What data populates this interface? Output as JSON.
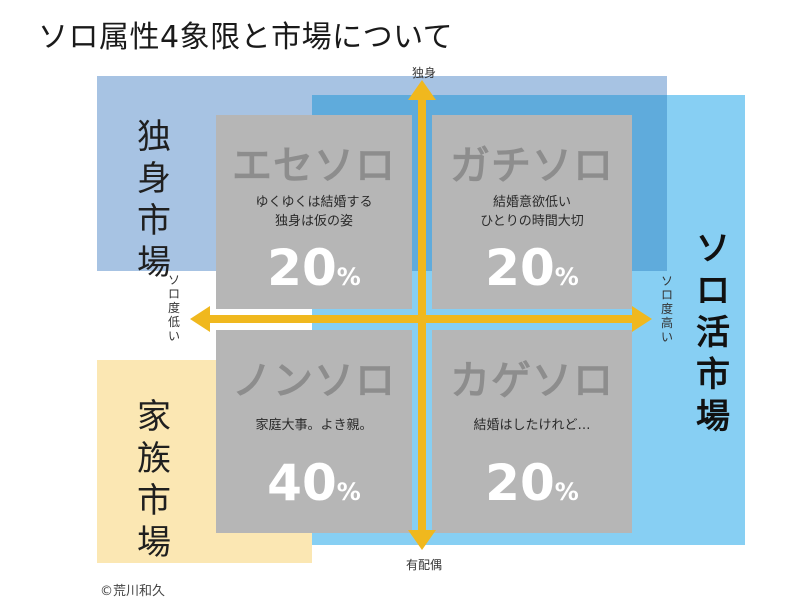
{
  "title": "ソロ属性4象限と市場について",
  "markets": {
    "single": "独身市場",
    "family": "家族市場",
    "solo": "ソロ活市場"
  },
  "axes": {
    "top": "独身",
    "bottom": "有配偶",
    "left": "ソロ度低い",
    "right": "ソロ度高い"
  },
  "quadrants": {
    "top_left": {
      "name": "エセソロ",
      "description": "ゆくゆくは結婚する\n独身は仮の姿",
      "percent": "20",
      "unit": "%"
    },
    "top_right": {
      "name": "ガチソロ",
      "description": "結婚意欲低い\nひとりの時間大切",
      "percent": "20",
      "unit": "%"
    },
    "bottom_left": {
      "name": "ノンソロ",
      "description": "家庭大事。よき親。",
      "percent": "40",
      "unit": "%"
    },
    "bottom_right": {
      "name": "カゲソロ",
      "description": "結婚はしたけれど…",
      "percent": "20",
      "unit": "%"
    }
  },
  "copyright": "©荒川和久",
  "colors": {
    "single_market": "#a7c3e3",
    "family_market": "#fbe7b3",
    "solo_market": "#87cff3",
    "quadrant_box": "#b6b6b6",
    "axis_arrow": "#f0b81e"
  }
}
